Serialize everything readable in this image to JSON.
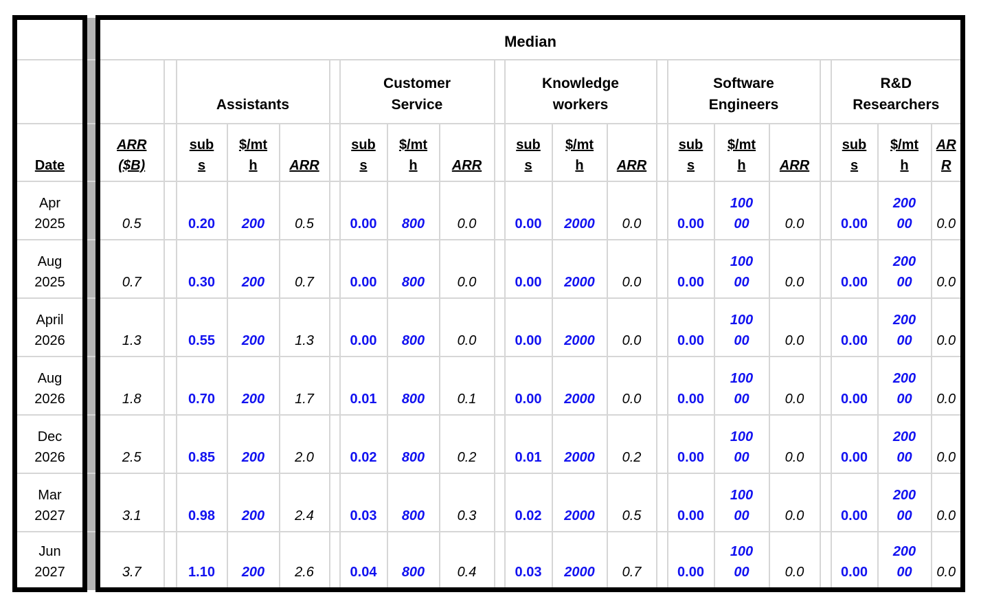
{
  "colors": {
    "accent_blue": "#1212f0",
    "grid_line": "#d6d6d6",
    "spacer_gray": "#b5b5b5",
    "border_black": "#000000"
  },
  "spreadsheet": {
    "title": "Median",
    "date_header": "Date",
    "arr_total_header": "ARR\n($B)",
    "groups": [
      {
        "name": "Assistants",
        "subs_header": "sub\ns",
        "rate_header": "$/mt\nh",
        "arr_header": "ARR"
      },
      {
        "name": "Customer\nService",
        "subs_header": "sub\ns",
        "rate_header": "$/mt\nh",
        "arr_header": "ARR"
      },
      {
        "name": "Knowledge\nworkers",
        "subs_header": "sub\ns",
        "rate_header": "$/mt\nh",
        "arr_header": "ARR"
      },
      {
        "name": "Software\nEngineers",
        "subs_header": "sub\ns",
        "rate_header": "$/mt\nh",
        "arr_header": "ARR"
      },
      {
        "name": "R&D\nResearchers",
        "subs_header": "sub\ns",
        "rate_header": "$/mt\nh",
        "arr_header": "AR\nR"
      }
    ],
    "rows": [
      {
        "date": "Apr\n2025",
        "arr_total": "0.5",
        "groups": [
          [
            "0.20",
            "200",
            "0.5"
          ],
          [
            "0.00",
            "800",
            "0.0"
          ],
          [
            "0.00",
            "2000",
            "0.0"
          ],
          [
            "0.00",
            "100\n00",
            "0.0"
          ],
          [
            "0.00",
            "200\n00",
            "0.0"
          ]
        ]
      },
      {
        "date": "Aug\n2025",
        "arr_total": "0.7",
        "groups": [
          [
            "0.30",
            "200",
            "0.7"
          ],
          [
            "0.00",
            "800",
            "0.0"
          ],
          [
            "0.00",
            "2000",
            "0.0"
          ],
          [
            "0.00",
            "100\n00",
            "0.0"
          ],
          [
            "0.00",
            "200\n00",
            "0.0"
          ]
        ]
      },
      {
        "date": "April\n2026",
        "arr_total": "1.3",
        "groups": [
          [
            "0.55",
            "200",
            "1.3"
          ],
          [
            "0.00",
            "800",
            "0.0"
          ],
          [
            "0.00",
            "2000",
            "0.0"
          ],
          [
            "0.00",
            "100\n00",
            "0.0"
          ],
          [
            "0.00",
            "200\n00",
            "0.0"
          ]
        ]
      },
      {
        "date": "Aug\n2026",
        "arr_total": "1.8",
        "groups": [
          [
            "0.70",
            "200",
            "1.7"
          ],
          [
            "0.01",
            "800",
            "0.1"
          ],
          [
            "0.00",
            "2000",
            "0.0"
          ],
          [
            "0.00",
            "100\n00",
            "0.0"
          ],
          [
            "0.00",
            "200\n00",
            "0.0"
          ]
        ]
      },
      {
        "date": "Dec\n2026",
        "arr_total": "2.5",
        "groups": [
          [
            "0.85",
            "200",
            "2.0"
          ],
          [
            "0.02",
            "800",
            "0.2"
          ],
          [
            "0.01",
            "2000",
            "0.2"
          ],
          [
            "0.00",
            "100\n00",
            "0.0"
          ],
          [
            "0.00",
            "200\n00",
            "0.0"
          ]
        ]
      },
      {
        "date": "Mar\n2027",
        "arr_total": "3.1",
        "groups": [
          [
            "0.98",
            "200",
            "2.4"
          ],
          [
            "0.03",
            "800",
            "0.3"
          ],
          [
            "0.02",
            "2000",
            "0.5"
          ],
          [
            "0.00",
            "100\n00",
            "0.0"
          ],
          [
            "0.00",
            "200\n00",
            "0.0"
          ]
        ]
      },
      {
        "date": "Jun\n2027",
        "arr_total": "3.7",
        "groups": [
          [
            "1.10",
            "200",
            "2.6"
          ],
          [
            "0.04",
            "800",
            "0.4"
          ],
          [
            "0.03",
            "2000",
            "0.7"
          ],
          [
            "0.00",
            "100\n00",
            "0.0"
          ],
          [
            "0.00",
            "200\n00",
            "0.0"
          ]
        ]
      }
    ]
  }
}
